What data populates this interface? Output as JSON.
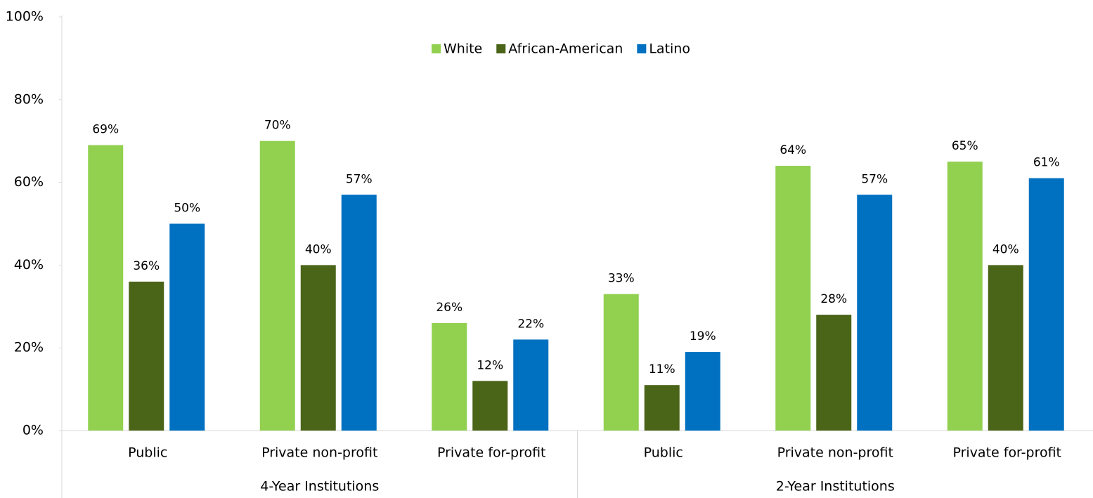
{
  "chart_data": {
    "type": "bar",
    "categories": [
      "Public",
      "Private non-profit",
      "Private for-profit",
      "Public",
      "Private non-profit",
      "Private for-profit"
    ],
    "groups": [
      "4-Year Institutions",
      "2-Year Institutions"
    ],
    "series": [
      {
        "name": "White",
        "color": "#92d050",
        "values": [
          69,
          70,
          26,
          33,
          64,
          65
        ],
        "value_labels": [
          "69%",
          "70%",
          "26%",
          "33%",
          "64%",
          "65%"
        ]
      },
      {
        "name": "African-American",
        "color": "#4a6418",
        "values": [
          36,
          40,
          12,
          11,
          28,
          40
        ],
        "value_labels": [
          "36%",
          "40%",
          "12%",
          "11%",
          "28%",
          "40%"
        ]
      },
      {
        "name": "Latino",
        "color": "#0070c0",
        "values": [
          50,
          57,
          22,
          19,
          57,
          61
        ],
        "value_labels": [
          "50%",
          "57%",
          "22%",
          "19%",
          "57%",
          "61%"
        ]
      }
    ],
    "ylim": [
      0,
      100
    ],
    "yticks": [
      {
        "value": 0,
        "label": "0%"
      },
      {
        "value": 20,
        "label": "20%"
      },
      {
        "value": 40,
        "label": "40%"
      },
      {
        "value": 60,
        "label": "60%"
      },
      {
        "value": 80,
        "label": "80%"
      },
      {
        "value": 100,
        "label": "100%"
      }
    ],
    "legend": "top"
  }
}
